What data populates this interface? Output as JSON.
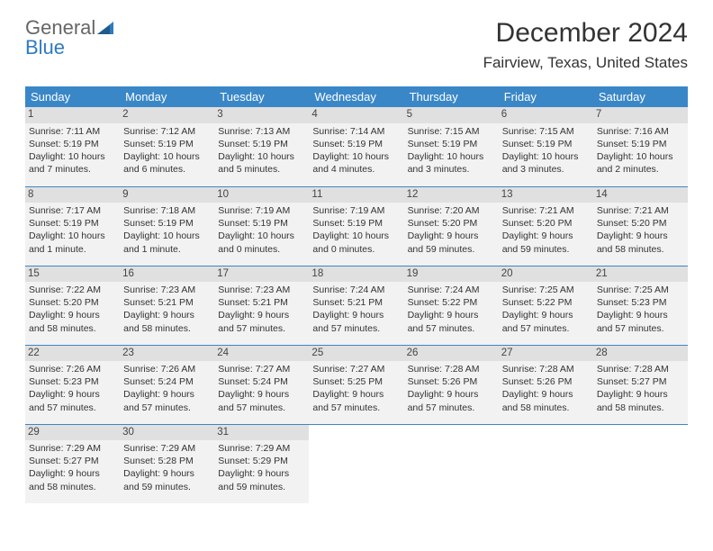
{
  "logo": {
    "text1": "General",
    "text2": "Blue"
  },
  "title": "December 2024",
  "subtitle": "Fairview, Texas, United States",
  "colors": {
    "header_bg": "#3a87c8",
    "header_text": "#ffffff",
    "cell_bg": "#f2f2f2",
    "daynum_bg": "#e0e0e0",
    "row_border": "#3a87c8",
    "logo_accent": "#2f7bbf"
  },
  "weekdays": [
    "Sunday",
    "Monday",
    "Tuesday",
    "Wednesday",
    "Thursday",
    "Friday",
    "Saturday"
  ],
  "weeks": [
    [
      {
        "day": "1",
        "sunrise": "Sunrise: 7:11 AM",
        "sunset": "Sunset: 5:19 PM",
        "daylight": "Daylight: 10 hours and 7 minutes."
      },
      {
        "day": "2",
        "sunrise": "Sunrise: 7:12 AM",
        "sunset": "Sunset: 5:19 PM",
        "daylight": "Daylight: 10 hours and 6 minutes."
      },
      {
        "day": "3",
        "sunrise": "Sunrise: 7:13 AM",
        "sunset": "Sunset: 5:19 PM",
        "daylight": "Daylight: 10 hours and 5 minutes."
      },
      {
        "day": "4",
        "sunrise": "Sunrise: 7:14 AM",
        "sunset": "Sunset: 5:19 PM",
        "daylight": "Daylight: 10 hours and 4 minutes."
      },
      {
        "day": "5",
        "sunrise": "Sunrise: 7:15 AM",
        "sunset": "Sunset: 5:19 PM",
        "daylight": "Daylight: 10 hours and 3 minutes."
      },
      {
        "day": "6",
        "sunrise": "Sunrise: 7:15 AM",
        "sunset": "Sunset: 5:19 PM",
        "daylight": "Daylight: 10 hours and 3 minutes."
      },
      {
        "day": "7",
        "sunrise": "Sunrise: 7:16 AM",
        "sunset": "Sunset: 5:19 PM",
        "daylight": "Daylight: 10 hours and 2 minutes."
      }
    ],
    [
      {
        "day": "8",
        "sunrise": "Sunrise: 7:17 AM",
        "sunset": "Sunset: 5:19 PM",
        "daylight": "Daylight: 10 hours and 1 minute."
      },
      {
        "day": "9",
        "sunrise": "Sunrise: 7:18 AM",
        "sunset": "Sunset: 5:19 PM",
        "daylight": "Daylight: 10 hours and 1 minute."
      },
      {
        "day": "10",
        "sunrise": "Sunrise: 7:19 AM",
        "sunset": "Sunset: 5:19 PM",
        "daylight": "Daylight: 10 hours and 0 minutes."
      },
      {
        "day": "11",
        "sunrise": "Sunrise: 7:19 AM",
        "sunset": "Sunset: 5:19 PM",
        "daylight": "Daylight: 10 hours and 0 minutes."
      },
      {
        "day": "12",
        "sunrise": "Sunrise: 7:20 AM",
        "sunset": "Sunset: 5:20 PM",
        "daylight": "Daylight: 9 hours and 59 minutes."
      },
      {
        "day": "13",
        "sunrise": "Sunrise: 7:21 AM",
        "sunset": "Sunset: 5:20 PM",
        "daylight": "Daylight: 9 hours and 59 minutes."
      },
      {
        "day": "14",
        "sunrise": "Sunrise: 7:21 AM",
        "sunset": "Sunset: 5:20 PM",
        "daylight": "Daylight: 9 hours and 58 minutes."
      }
    ],
    [
      {
        "day": "15",
        "sunrise": "Sunrise: 7:22 AM",
        "sunset": "Sunset: 5:20 PM",
        "daylight": "Daylight: 9 hours and 58 minutes."
      },
      {
        "day": "16",
        "sunrise": "Sunrise: 7:23 AM",
        "sunset": "Sunset: 5:21 PM",
        "daylight": "Daylight: 9 hours and 58 minutes."
      },
      {
        "day": "17",
        "sunrise": "Sunrise: 7:23 AM",
        "sunset": "Sunset: 5:21 PM",
        "daylight": "Daylight: 9 hours and 57 minutes."
      },
      {
        "day": "18",
        "sunrise": "Sunrise: 7:24 AM",
        "sunset": "Sunset: 5:21 PM",
        "daylight": "Daylight: 9 hours and 57 minutes."
      },
      {
        "day": "19",
        "sunrise": "Sunrise: 7:24 AM",
        "sunset": "Sunset: 5:22 PM",
        "daylight": "Daylight: 9 hours and 57 minutes."
      },
      {
        "day": "20",
        "sunrise": "Sunrise: 7:25 AM",
        "sunset": "Sunset: 5:22 PM",
        "daylight": "Daylight: 9 hours and 57 minutes."
      },
      {
        "day": "21",
        "sunrise": "Sunrise: 7:25 AM",
        "sunset": "Sunset: 5:23 PM",
        "daylight": "Daylight: 9 hours and 57 minutes."
      }
    ],
    [
      {
        "day": "22",
        "sunrise": "Sunrise: 7:26 AM",
        "sunset": "Sunset: 5:23 PM",
        "daylight": "Daylight: 9 hours and 57 minutes."
      },
      {
        "day": "23",
        "sunrise": "Sunrise: 7:26 AM",
        "sunset": "Sunset: 5:24 PM",
        "daylight": "Daylight: 9 hours and 57 minutes."
      },
      {
        "day": "24",
        "sunrise": "Sunrise: 7:27 AM",
        "sunset": "Sunset: 5:24 PM",
        "daylight": "Daylight: 9 hours and 57 minutes."
      },
      {
        "day": "25",
        "sunrise": "Sunrise: 7:27 AM",
        "sunset": "Sunset: 5:25 PM",
        "daylight": "Daylight: 9 hours and 57 minutes."
      },
      {
        "day": "26",
        "sunrise": "Sunrise: 7:28 AM",
        "sunset": "Sunset: 5:26 PM",
        "daylight": "Daylight: 9 hours and 57 minutes."
      },
      {
        "day": "27",
        "sunrise": "Sunrise: 7:28 AM",
        "sunset": "Sunset: 5:26 PM",
        "daylight": "Daylight: 9 hours and 58 minutes."
      },
      {
        "day": "28",
        "sunrise": "Sunrise: 7:28 AM",
        "sunset": "Sunset: 5:27 PM",
        "daylight": "Daylight: 9 hours and 58 minutes."
      }
    ],
    [
      {
        "day": "29",
        "sunrise": "Sunrise: 7:29 AM",
        "sunset": "Sunset: 5:27 PM",
        "daylight": "Daylight: 9 hours and 58 minutes."
      },
      {
        "day": "30",
        "sunrise": "Sunrise: 7:29 AM",
        "sunset": "Sunset: 5:28 PM",
        "daylight": "Daylight: 9 hours and 59 minutes."
      },
      {
        "day": "31",
        "sunrise": "Sunrise: 7:29 AM",
        "sunset": "Sunset: 5:29 PM",
        "daylight": "Daylight: 9 hours and 59 minutes."
      },
      null,
      null,
      null,
      null
    ]
  ]
}
